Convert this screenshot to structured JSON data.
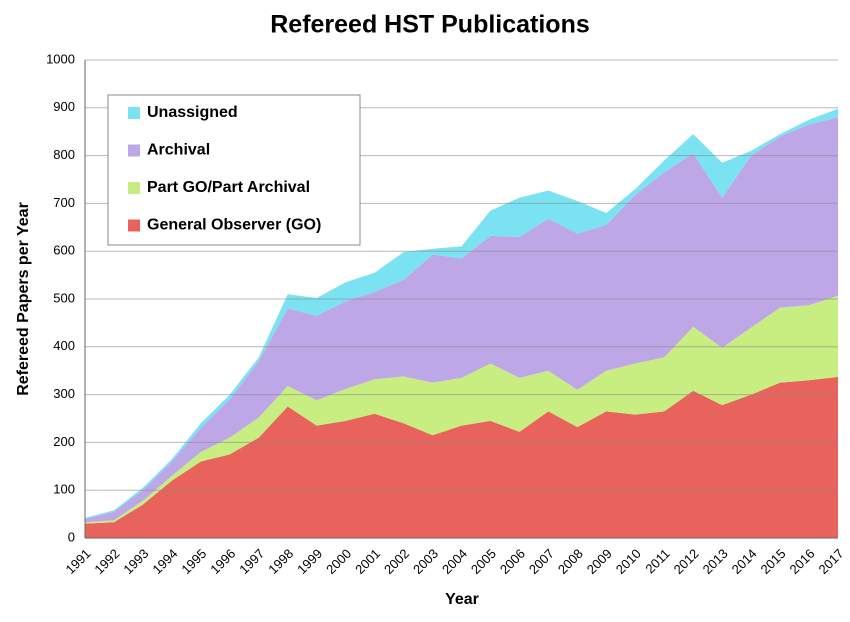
{
  "chart_data": {
    "type": "stacked_area",
    "title": "Refereed HST Publications",
    "x_label": "Year",
    "y_label": "Refereed Papers per Year",
    "categories": [
      "1991",
      "1992",
      "1993",
      "1994",
      "1995",
      "1996",
      "1997",
      "1998",
      "1999",
      "2000",
      "2001",
      "2002",
      "2003",
      "2004",
      "2005",
      "2006",
      "2007",
      "2008",
      "2009",
      "2010",
      "2011",
      "2012",
      "2013",
      "2014",
      "2015",
      "2016",
      "2017"
    ],
    "series": [
      {
        "name": "General Observer (GO)",
        "color": "#e8635c",
        "values": [
          30,
          33,
          70,
          120,
          160,
          175,
          210,
          275,
          235,
          245,
          260,
          240,
          215,
          235,
          245,
          222,
          265,
          232,
          265,
          258,
          265,
          308,
          278,
          300,
          325,
          330,
          337
        ]
      },
      {
        "name": "Part GO/Part Archival",
        "color": "#c8ee82",
        "values": [
          3,
          4,
          8,
          10,
          20,
          35,
          42,
          43,
          53,
          67,
          72,
          98,
          110,
          100,
          120,
          113,
          85,
          78,
          85,
          107,
          113,
          134,
          120,
          140,
          157,
          157,
          170
        ]
      },
      {
        "name": "Archival",
        "color": "#bea7e7",
        "values": [
          7,
          18,
          22,
          30,
          50,
          80,
          118,
          162,
          177,
          183,
          183,
          202,
          268,
          250,
          267,
          295,
          318,
          327,
          305,
          353,
          387,
          363,
          314,
          360,
          358,
          378,
          373
        ]
      },
      {
        "name": "Unassigned",
        "color": "#7be2f2",
        "values": [
          2,
          3,
          5,
          5,
          10,
          10,
          8,
          30,
          37,
          40,
          40,
          58,
          12,
          25,
          53,
          82,
          59,
          68,
          25,
          12,
          25,
          40,
          73,
          10,
          5,
          10,
          18
        ]
      }
    ],
    "ylim": [
      0,
      1000
    ],
    "yticks": [
      0,
      100,
      200,
      300,
      400,
      500,
      600,
      700,
      800,
      900,
      1000
    ],
    "grid": true,
    "legend": "upper left"
  }
}
